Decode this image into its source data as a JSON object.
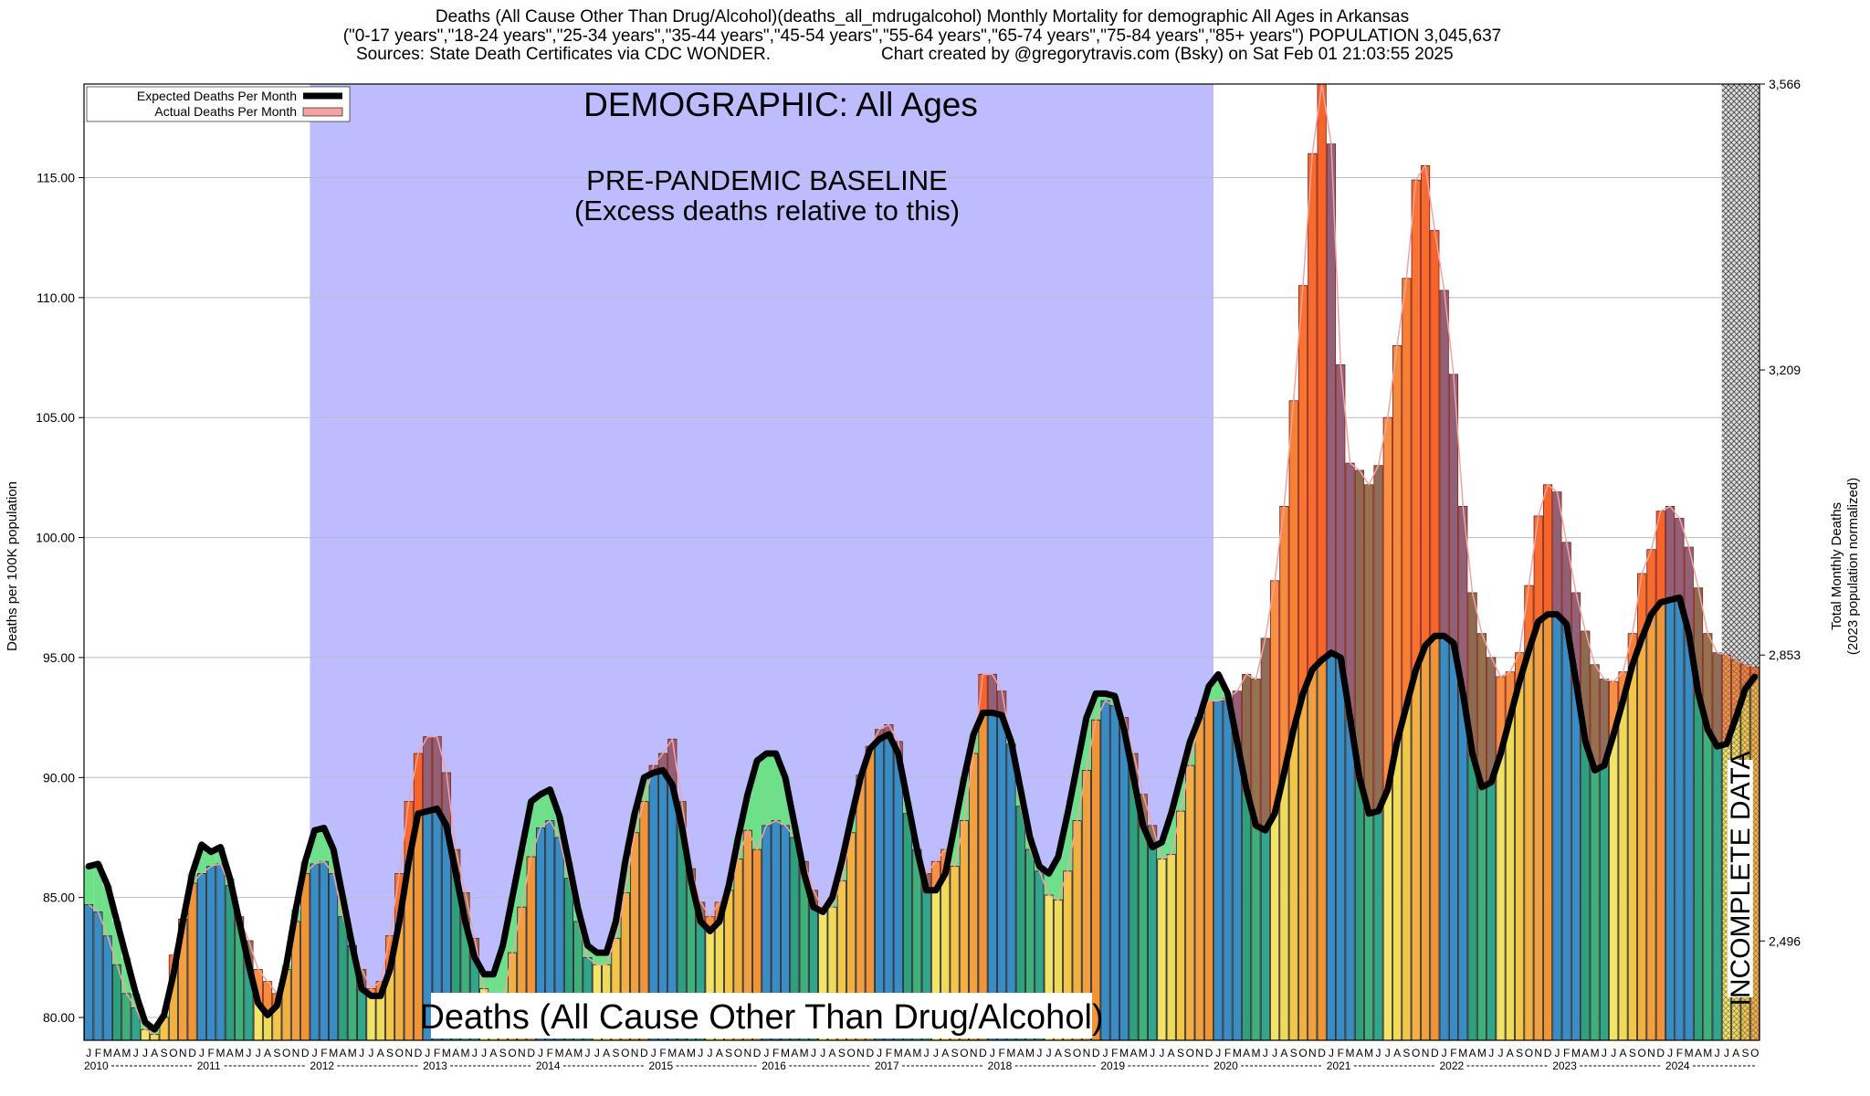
{
  "chart_data": {
    "type": "bar",
    "title": [
      "Deaths (All Cause Other Than Drug/Alcohol)(deaths_all_mdrugalcohol) Monthly Mortality for demographic All Ages in Arkansas",
      "(\"0-17 years\",\"18-24 years\",\"25-34 years\",\"35-44 years\",\"45-54 years\",\"55-64 years\",\"65-74 years\",\"75-84 years\",\"85+ years\") POPULATION 3,045,637"
    ],
    "subtitle": [
      "Sources: State Death Certificates via CDC WONDER.",
      "Chart created by @gregorytravis.com (Bsky) on Sat Feb 01 21:03:55 2025"
    ],
    "y_label": "Deaths per 100K population",
    "y2_label": [
      "Total Monthly Deaths",
      "(2023 population normalized)"
    ],
    "annotations": {
      "demographic": "DEMOGRAPHIC: All Ages",
      "baseline": [
        "PRE-PANDEMIC BASELINE",
        "(Excess deaths relative to this)"
      ],
      "cause": "Deaths (All Cause Other Than Drug/Alcohol)",
      "incomplete": "INCOMPLETE DATA"
    },
    "baseline_range": [
      "2012-01",
      "2019-12"
    ],
    "incomplete_range": [
      "2024-07",
      "2024-10"
    ],
    "month_labels": [
      "J",
      "F",
      "M",
      "A",
      "M",
      "J",
      "J",
      "A",
      "S",
      "O",
      "N",
      "D"
    ],
    "year_labels": [
      "2010",
      "2011",
      "2012",
      "2013",
      "2014",
      "2015",
      "2016",
      "2017",
      "2018",
      "2019",
      "2020",
      "2021",
      "2022",
      "2023",
      "2024"
    ],
    "month_colors": [
      "#3a8cc4",
      "#3a8cc4",
      "#3a8cc4",
      "#2fa07e",
      "#3fb07a",
      "#32a68a",
      "#f2e467",
      "#f0da5a",
      "#f3c64a",
      "#f2b042",
      "#f0a040",
      "#f09438"
    ],
    "excess_color": "#ff2a1a",
    "deficit_color": "#6fe08a",
    "baseline_color": "#bcbcff",
    "legend": "upper left",
    "grid": true,
    "x": [
      "2010-01",
      "2010-02",
      "2010-03",
      "2010-04",
      "2010-05",
      "2010-06",
      "2010-07",
      "2010-08",
      "2010-09",
      "2010-10",
      "2010-11",
      "2010-12",
      "2011-01",
      "2011-02",
      "2011-03",
      "2011-04",
      "2011-05",
      "2011-06",
      "2011-07",
      "2011-08",
      "2011-09",
      "2011-10",
      "2011-11",
      "2011-12",
      "2012-01",
      "2012-02",
      "2012-03",
      "2012-04",
      "2012-05",
      "2012-06",
      "2012-07",
      "2012-08",
      "2012-09",
      "2012-10",
      "2012-11",
      "2012-12",
      "2013-01",
      "2013-02",
      "2013-03",
      "2013-04",
      "2013-05",
      "2013-06",
      "2013-07",
      "2013-08",
      "2013-09",
      "2013-10",
      "2013-11",
      "2013-12",
      "2014-01",
      "2014-02",
      "2014-03",
      "2014-04",
      "2014-05",
      "2014-06",
      "2014-07",
      "2014-08",
      "2014-09",
      "2014-10",
      "2014-11",
      "2014-12",
      "2015-01",
      "2015-02",
      "2015-03",
      "2015-04",
      "2015-05",
      "2015-06",
      "2015-07",
      "2015-08",
      "2015-09",
      "2015-10",
      "2015-11",
      "2015-12",
      "2016-01",
      "2016-02",
      "2016-03",
      "2016-04",
      "2016-05",
      "2016-06",
      "2016-07",
      "2016-08",
      "2016-09",
      "2016-10",
      "2016-11",
      "2016-12",
      "2017-01",
      "2017-02",
      "2017-03",
      "2017-04",
      "2017-05",
      "2017-06",
      "2017-07",
      "2017-08",
      "2017-09",
      "2017-10",
      "2017-11",
      "2017-12",
      "2018-01",
      "2018-02",
      "2018-03",
      "2018-04",
      "2018-05",
      "2018-06",
      "2018-07",
      "2018-08",
      "2018-09",
      "2018-10",
      "2018-11",
      "2018-12",
      "2019-01",
      "2019-02",
      "2019-03",
      "2019-04",
      "2019-05",
      "2019-06",
      "2019-07",
      "2019-08",
      "2019-09",
      "2019-10",
      "2019-11",
      "2019-12",
      "2020-01",
      "2020-02",
      "2020-03",
      "2020-04",
      "2020-05",
      "2020-06",
      "2020-07",
      "2020-08",
      "2020-09",
      "2020-10",
      "2020-11",
      "2020-12",
      "2021-01",
      "2021-02",
      "2021-03",
      "2021-04",
      "2021-05",
      "2021-06",
      "2021-07",
      "2021-08",
      "2021-09",
      "2021-10",
      "2021-11",
      "2021-12",
      "2022-01",
      "2022-02",
      "2022-03",
      "2022-04",
      "2022-05",
      "2022-06",
      "2022-07",
      "2022-08",
      "2022-09",
      "2022-10",
      "2022-11",
      "2022-12",
      "2023-01",
      "2023-02",
      "2023-03",
      "2023-04",
      "2023-05",
      "2023-06",
      "2023-07",
      "2023-08",
      "2023-09",
      "2023-10",
      "2023-11",
      "2023-12",
      "2024-01",
      "2024-02",
      "2024-03",
      "2024-04",
      "2024-05",
      "2024-06",
      "2024-07",
      "2024-08",
      "2024-09",
      "2024-10"
    ],
    "series": [
      {
        "name": "Expected Deaths Per Month",
        "color": "#000000",
        "values": [
          86.3,
          86.4,
          85.5,
          84.0,
          82.5,
          81.0,
          79.8,
          79.5,
          80.1,
          81.8,
          84.0,
          86.0,
          87.2,
          86.9,
          87.1,
          85.8,
          84.0,
          82.2,
          80.6,
          80.1,
          80.5,
          82.2,
          84.5,
          86.5,
          87.8,
          87.9,
          87.0,
          85.0,
          83.0,
          81.2,
          80.9,
          80.9,
          82.0,
          84.0,
          86.5,
          88.5,
          88.6,
          88.7,
          88.0,
          86.0,
          84.0,
          82.5,
          81.8,
          81.8,
          83.0,
          85.0,
          87.0,
          89.0,
          89.3,
          89.5,
          88.4,
          86.5,
          84.5,
          83.0,
          82.7,
          82.7,
          84.0,
          86.5,
          88.5,
          90.0,
          90.2,
          90.3,
          89.7,
          88.0,
          85.7,
          84.0,
          83.6,
          84.0,
          85.5,
          87.5,
          89.3,
          90.7,
          91.0,
          91.0,
          90.0,
          88.0,
          86.0,
          84.6,
          84.4,
          85.0,
          86.5,
          88.3,
          90.0,
          91.2,
          91.6,
          91.8,
          91.0,
          89.0,
          87.0,
          85.3,
          85.3,
          86.0,
          88.0,
          90.0,
          91.8,
          92.7,
          92.7,
          92.6,
          91.5,
          89.5,
          87.5,
          86.3,
          86.0,
          86.7,
          88.5,
          90.5,
          92.5,
          93.5,
          93.5,
          93.4,
          92.0,
          90.0,
          88.0,
          87.1,
          87.3,
          88.5,
          90.0,
          91.5,
          92.5,
          93.8,
          94.3,
          93.5,
          91.5,
          89.5,
          88.0,
          87.8,
          88.5,
          90.2,
          92.0,
          93.5,
          94.5,
          94.9,
          95.2,
          95.0,
          92.5,
          90.0,
          88.5,
          88.6,
          89.5,
          91.5,
          93.0,
          94.5,
          95.5,
          95.9,
          95.9,
          95.6,
          93.5,
          91.0,
          89.6,
          89.8,
          91.0,
          92.5,
          94.0,
          95.3,
          96.5,
          96.8,
          96.8,
          96.4,
          94.0,
          91.5,
          90.3,
          90.5,
          91.8,
          93.2,
          94.7,
          95.8,
          96.8,
          97.3,
          97.4,
          97.5,
          96.0,
          93.5,
          92.0,
          91.3,
          91.4,
          92.5,
          93.7,
          94.2
        ]
      },
      {
        "name": "Actual Deaths Per Month",
        "color": "#f4a3a0",
        "values": [
          84.7,
          84.4,
          83.4,
          82.2,
          81.0,
          80.4,
          79.5,
          79.3,
          80.0,
          82.6,
          84.1,
          85.6,
          86.0,
          86.3,
          86.4,
          85.5,
          84.2,
          83.2,
          82.0,
          81.5,
          81.0,
          82.0,
          84.0,
          86.0,
          86.4,
          86.5,
          86.0,
          84.2,
          83.0,
          82.0,
          81.2,
          81.5,
          83.4,
          86.0,
          89.0,
          91.0,
          91.7,
          91.7,
          90.2,
          87.0,
          85.2,
          83.3,
          81.2,
          80.8,
          80.8,
          82.7,
          84.6,
          86.7,
          87.9,
          88.2,
          87.5,
          85.8,
          84.0,
          82.5,
          82.2,
          82.2,
          83.3,
          85.2,
          87.7,
          89.0,
          90.5,
          91.0,
          91.6,
          89.0,
          86.2,
          84.8,
          84.2,
          84.8,
          85.3,
          86.6,
          87.8,
          87.0,
          88.0,
          88.2,
          88.0,
          87.5,
          86.5,
          85.3,
          84.5,
          84.6,
          85.7,
          87.7,
          90.1,
          91.3,
          92.0,
          92.2,
          91.5,
          88.5,
          87.0,
          86.0,
          86.5,
          87.0,
          86.3,
          88.2,
          91.0,
          94.3,
          94.3,
          93.6,
          91.4,
          88.8,
          87.0,
          86.1,
          85.1,
          84.9,
          86.1,
          88.2,
          90.3,
          92.4,
          93.2,
          93.0,
          92.5,
          91.0,
          89.3,
          88.0,
          86.6,
          86.8,
          88.6,
          90.5,
          92.5,
          93.2,
          93.2,
          93.3,
          93.6,
          94.3,
          94.1,
          95.8,
          98.2,
          101.3,
          105.7,
          110.5,
          116.0,
          118.9,
          116.4,
          107.2,
          103.1,
          102.8,
          102.2,
          103.0,
          105.0,
          108.0,
          110.8,
          114.9,
          115.5,
          112.8,
          110.3,
          106.8,
          101.3,
          97.7,
          96.0,
          95.0,
          94.2,
          94.4,
          95.2,
          98.0,
          100.9,
          102.2,
          101.9,
          99.8,
          97.7,
          96.1,
          94.7,
          94.1,
          94.0,
          94.4,
          96.0,
          98.5,
          99.5,
          101.1,
          101.3,
          100.8,
          99.6,
          97.9,
          96.0,
          95.2,
          95.1,
          94.9,
          94.7,
          94.6
        ]
      }
    ],
    "ylim": [
      79.05,
      118.9
    ],
    "yticks": [
      {
        "value": 80,
        "label": "80.00"
      },
      {
        "value": 85,
        "label": "85.00"
      },
      {
        "value": 90,
        "label": "90.00"
      },
      {
        "value": 95,
        "label": "95.00"
      },
      {
        "value": 100,
        "label": "100.00"
      },
      {
        "value": 105,
        "label": "105.00"
      },
      {
        "value": 110,
        "label": "110.00"
      },
      {
        "value": 115,
        "label": "115.00"
      }
    ],
    "y2lim": [
      2372,
      3566
    ],
    "y2ticks": [
      {
        "value": 2496,
        "label": "2,496"
      },
      {
        "value": 2853,
        "label": "2,853"
      },
      {
        "value": 3209,
        "label": "3,209"
      },
      {
        "value": 3566,
        "label": "3,566"
      }
    ]
  }
}
